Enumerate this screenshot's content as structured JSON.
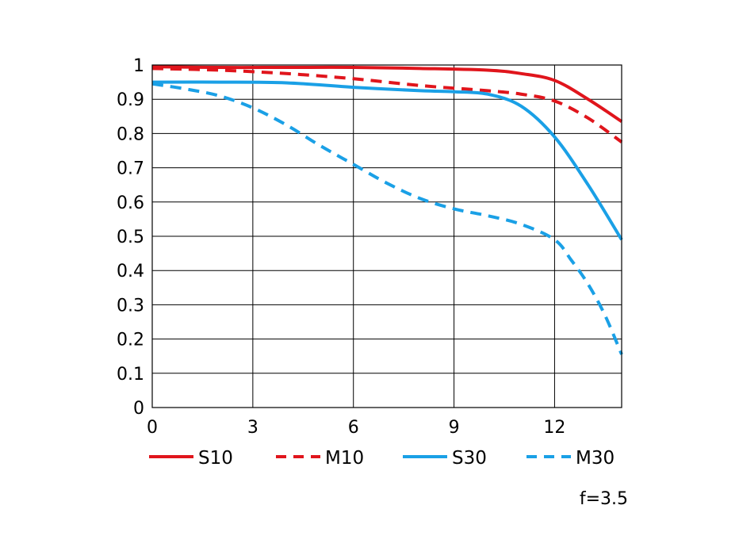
{
  "chart_data": {
    "type": "line",
    "xlim": [
      0,
      14
    ],
    "ylim": [
      0,
      1
    ],
    "xticks": [
      0,
      3,
      6,
      9,
      12
    ],
    "yticks": [
      0,
      0.1,
      0.2,
      0.3,
      0.4,
      0.5,
      0.6,
      0.7,
      0.8,
      0.9,
      1
    ],
    "ytick_labels": [
      "0",
      "0.1",
      "0.2",
      "0.3",
      "0.4",
      "0.5",
      "0.6",
      "0.7",
      "0.8",
      "0.9",
      "1"
    ],
    "grid": true,
    "legend_position": "bottom",
    "annotation": "f=3.5",
    "series": [
      {
        "name": "S10",
        "color": "#e0151c",
        "dash": "solid",
        "x": [
          0,
          2,
          4,
          6,
          8,
          10,
          11,
          12,
          13,
          14
        ],
        "y": [
          0.995,
          0.993,
          0.993,
          0.993,
          0.99,
          0.985,
          0.975,
          0.955,
          0.9,
          0.835
        ]
      },
      {
        "name": "M10",
        "color": "#e0151c",
        "dash": "dashed",
        "x": [
          0,
          2,
          4,
          6,
          8,
          10,
          11,
          12,
          13,
          14
        ],
        "y": [
          0.99,
          0.985,
          0.975,
          0.96,
          0.94,
          0.925,
          0.915,
          0.895,
          0.845,
          0.775
        ]
      },
      {
        "name": "S30",
        "color": "#1aa0e6",
        "dash": "solid",
        "x": [
          0,
          2,
          4,
          6,
          8,
          9,
          10,
          11,
          12,
          13,
          14
        ],
        "y": [
          0.95,
          0.95,
          0.948,
          0.935,
          0.925,
          0.922,
          0.915,
          0.88,
          0.79,
          0.65,
          0.49
        ]
      },
      {
        "name": "M30",
        "color": "#1aa0e6",
        "dash": "dashed",
        "x": [
          0,
          1,
          2,
          3,
          4,
          5,
          6,
          7,
          8,
          9,
          10,
          11,
          12,
          12.5,
          13,
          13.5,
          14
        ],
        "y": [
          0.945,
          0.93,
          0.91,
          0.875,
          0.825,
          0.765,
          0.71,
          0.655,
          0.61,
          0.58,
          0.56,
          0.535,
          0.49,
          0.43,
          0.36,
          0.27,
          0.155
        ]
      }
    ]
  }
}
